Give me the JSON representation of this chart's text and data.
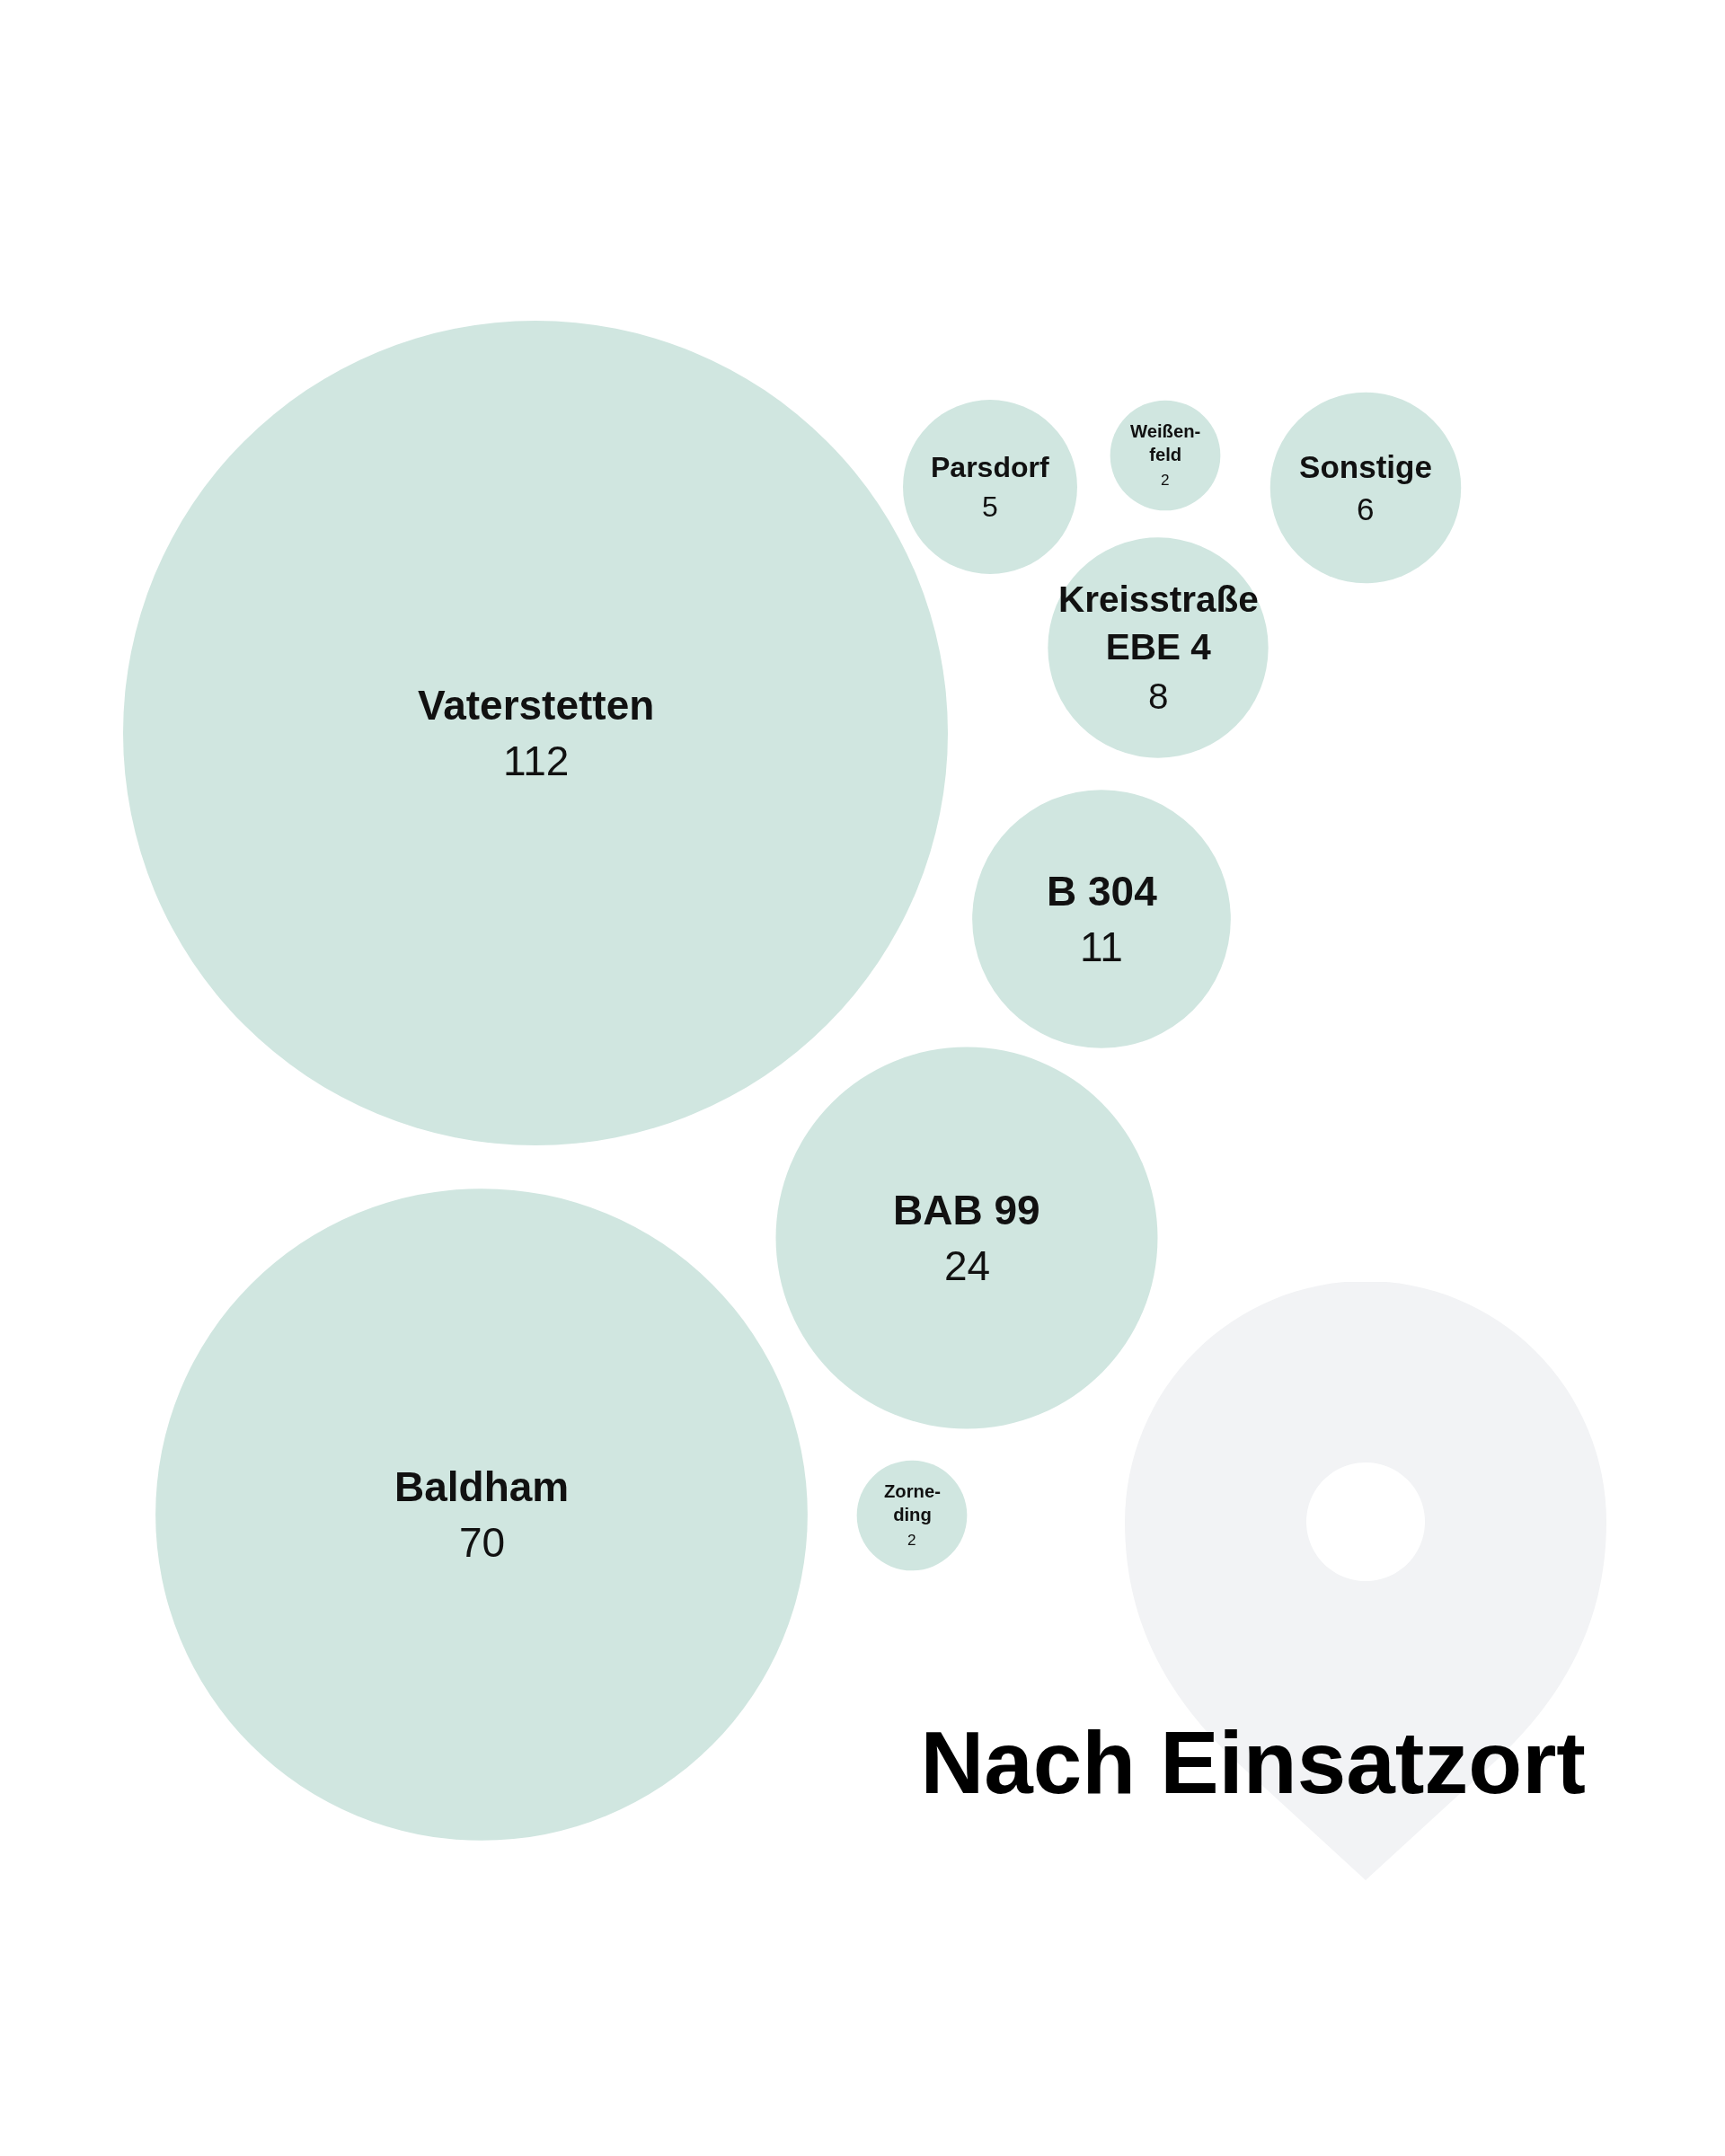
{
  "chart_data": {
    "type": "other",
    "title": "Nach Einsatzort",
    "categories": [
      "Vaterstetten",
      "Parsdorf",
      "Weißen-\nfeld",
      "Sonstige",
      "Kreisstraße\nEBE 4",
      "B 304",
      "BAB 99",
      "Baldham",
      "Zorne-\nding"
    ],
    "values": [
      112,
      5,
      2,
      6,
      8,
      11,
      24,
      70,
      2
    ],
    "color": "#d0e6e0",
    "data_labels": true
  }
}
